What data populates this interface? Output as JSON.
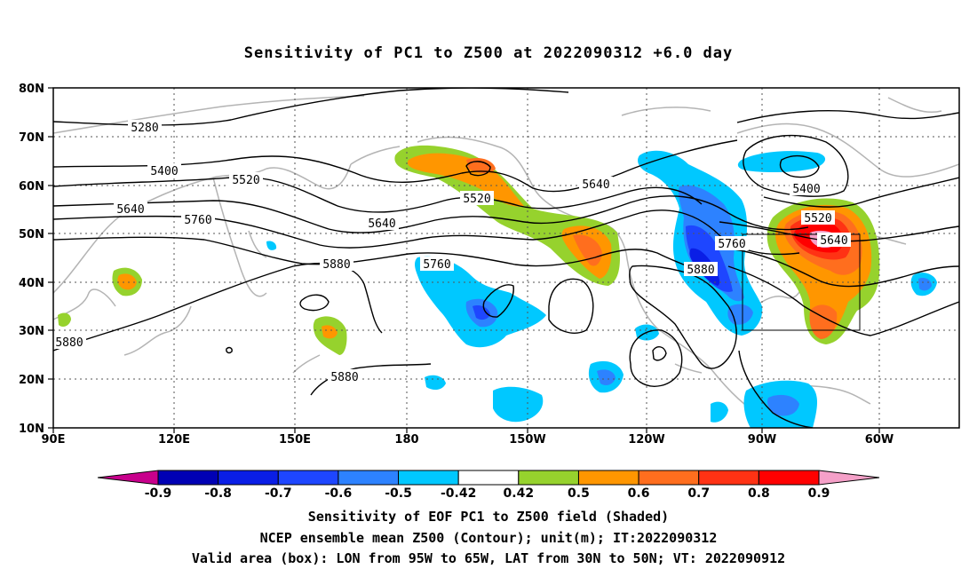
{
  "title": "Sensitivity of PC1 to Z500 at 2022090312 +6.0 day",
  "lat_labels": [
    "80N",
    "70N",
    "60N",
    "50N",
    "40N",
    "30N",
    "20N",
    "10N"
  ],
  "lon_labels": [
    "90E",
    "120E",
    "150E",
    "180",
    "150W",
    "120W",
    "90W",
    "60W"
  ],
  "contour_labels": [
    "5280",
    "5400",
    "5520",
    "5640",
    "5760",
    "5880",
    "5640",
    "5520",
    "5760",
    "5640",
    "5880",
    "5760",
    "5880",
    "5400",
    "5520",
    "5640",
    "5880"
  ],
  "colorbar": {
    "labels": [
      "-0.9",
      "-0.8",
      "-0.7",
      "-0.6",
      "-0.5",
      "-0.42",
      "0.42",
      "0.5",
      "0.6",
      "0.7",
      "0.8",
      "0.9"
    ],
    "colors": [
      "#c8008c",
      "#0000b4",
      "#0a1ee6",
      "#1e46ff",
      "#2d82ff",
      "#00c8ff",
      "#ffffff",
      "#96d22d",
      "#ff9600",
      "#ff6e1e",
      "#ff3214",
      "#ff0000",
      "#f5a0c8"
    ]
  },
  "captions": {
    "line1": "Sensitivity of EOF PC1 to Z500 field (Shaded)",
    "line2": "NCEP ensemble mean Z500 (Contour); unit(m); IT:2022090312",
    "line3": "Valid area (box): LON from 95W to 65W, LAT from 30N to 50N; VT: 2022090912"
  }
}
